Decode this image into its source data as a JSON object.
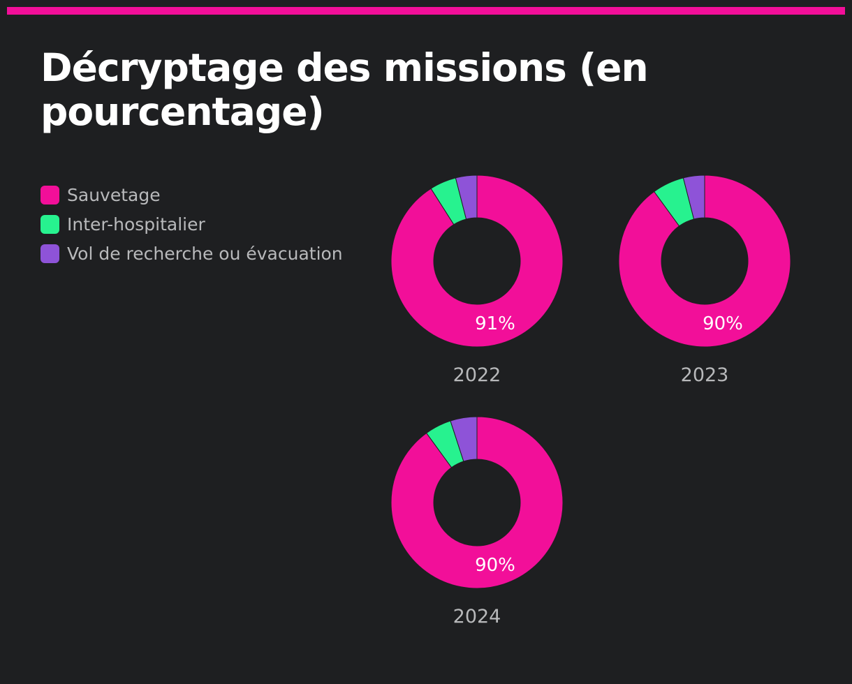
{
  "colors": {
    "accent_bar": "#f20f99",
    "background": "#1e1f21"
  },
  "title": "Décryptage des missions (en pourcentage)",
  "chart_data": {
    "type": "donut",
    "title": "Décryptage des missions (en pourcentage)",
    "series": [
      {
        "name": "Sauvetage",
        "color": "#f20f99"
      },
      {
        "name": "Inter-hospitalier",
        "color": "#27f28f"
      },
      {
        "name": "Vol de recherche ou évacuation",
        "color": "#8e53d8"
      }
    ],
    "charts": [
      {
        "year": "2022",
        "values": [
          91,
          5,
          4
        ],
        "label": "91%"
      },
      {
        "year": "2023",
        "values": [
          90,
          6,
          4
        ],
        "label": "90%"
      },
      {
        "year": "2024",
        "values": [
          90,
          5,
          5
        ],
        "label": "90%"
      }
    ]
  }
}
